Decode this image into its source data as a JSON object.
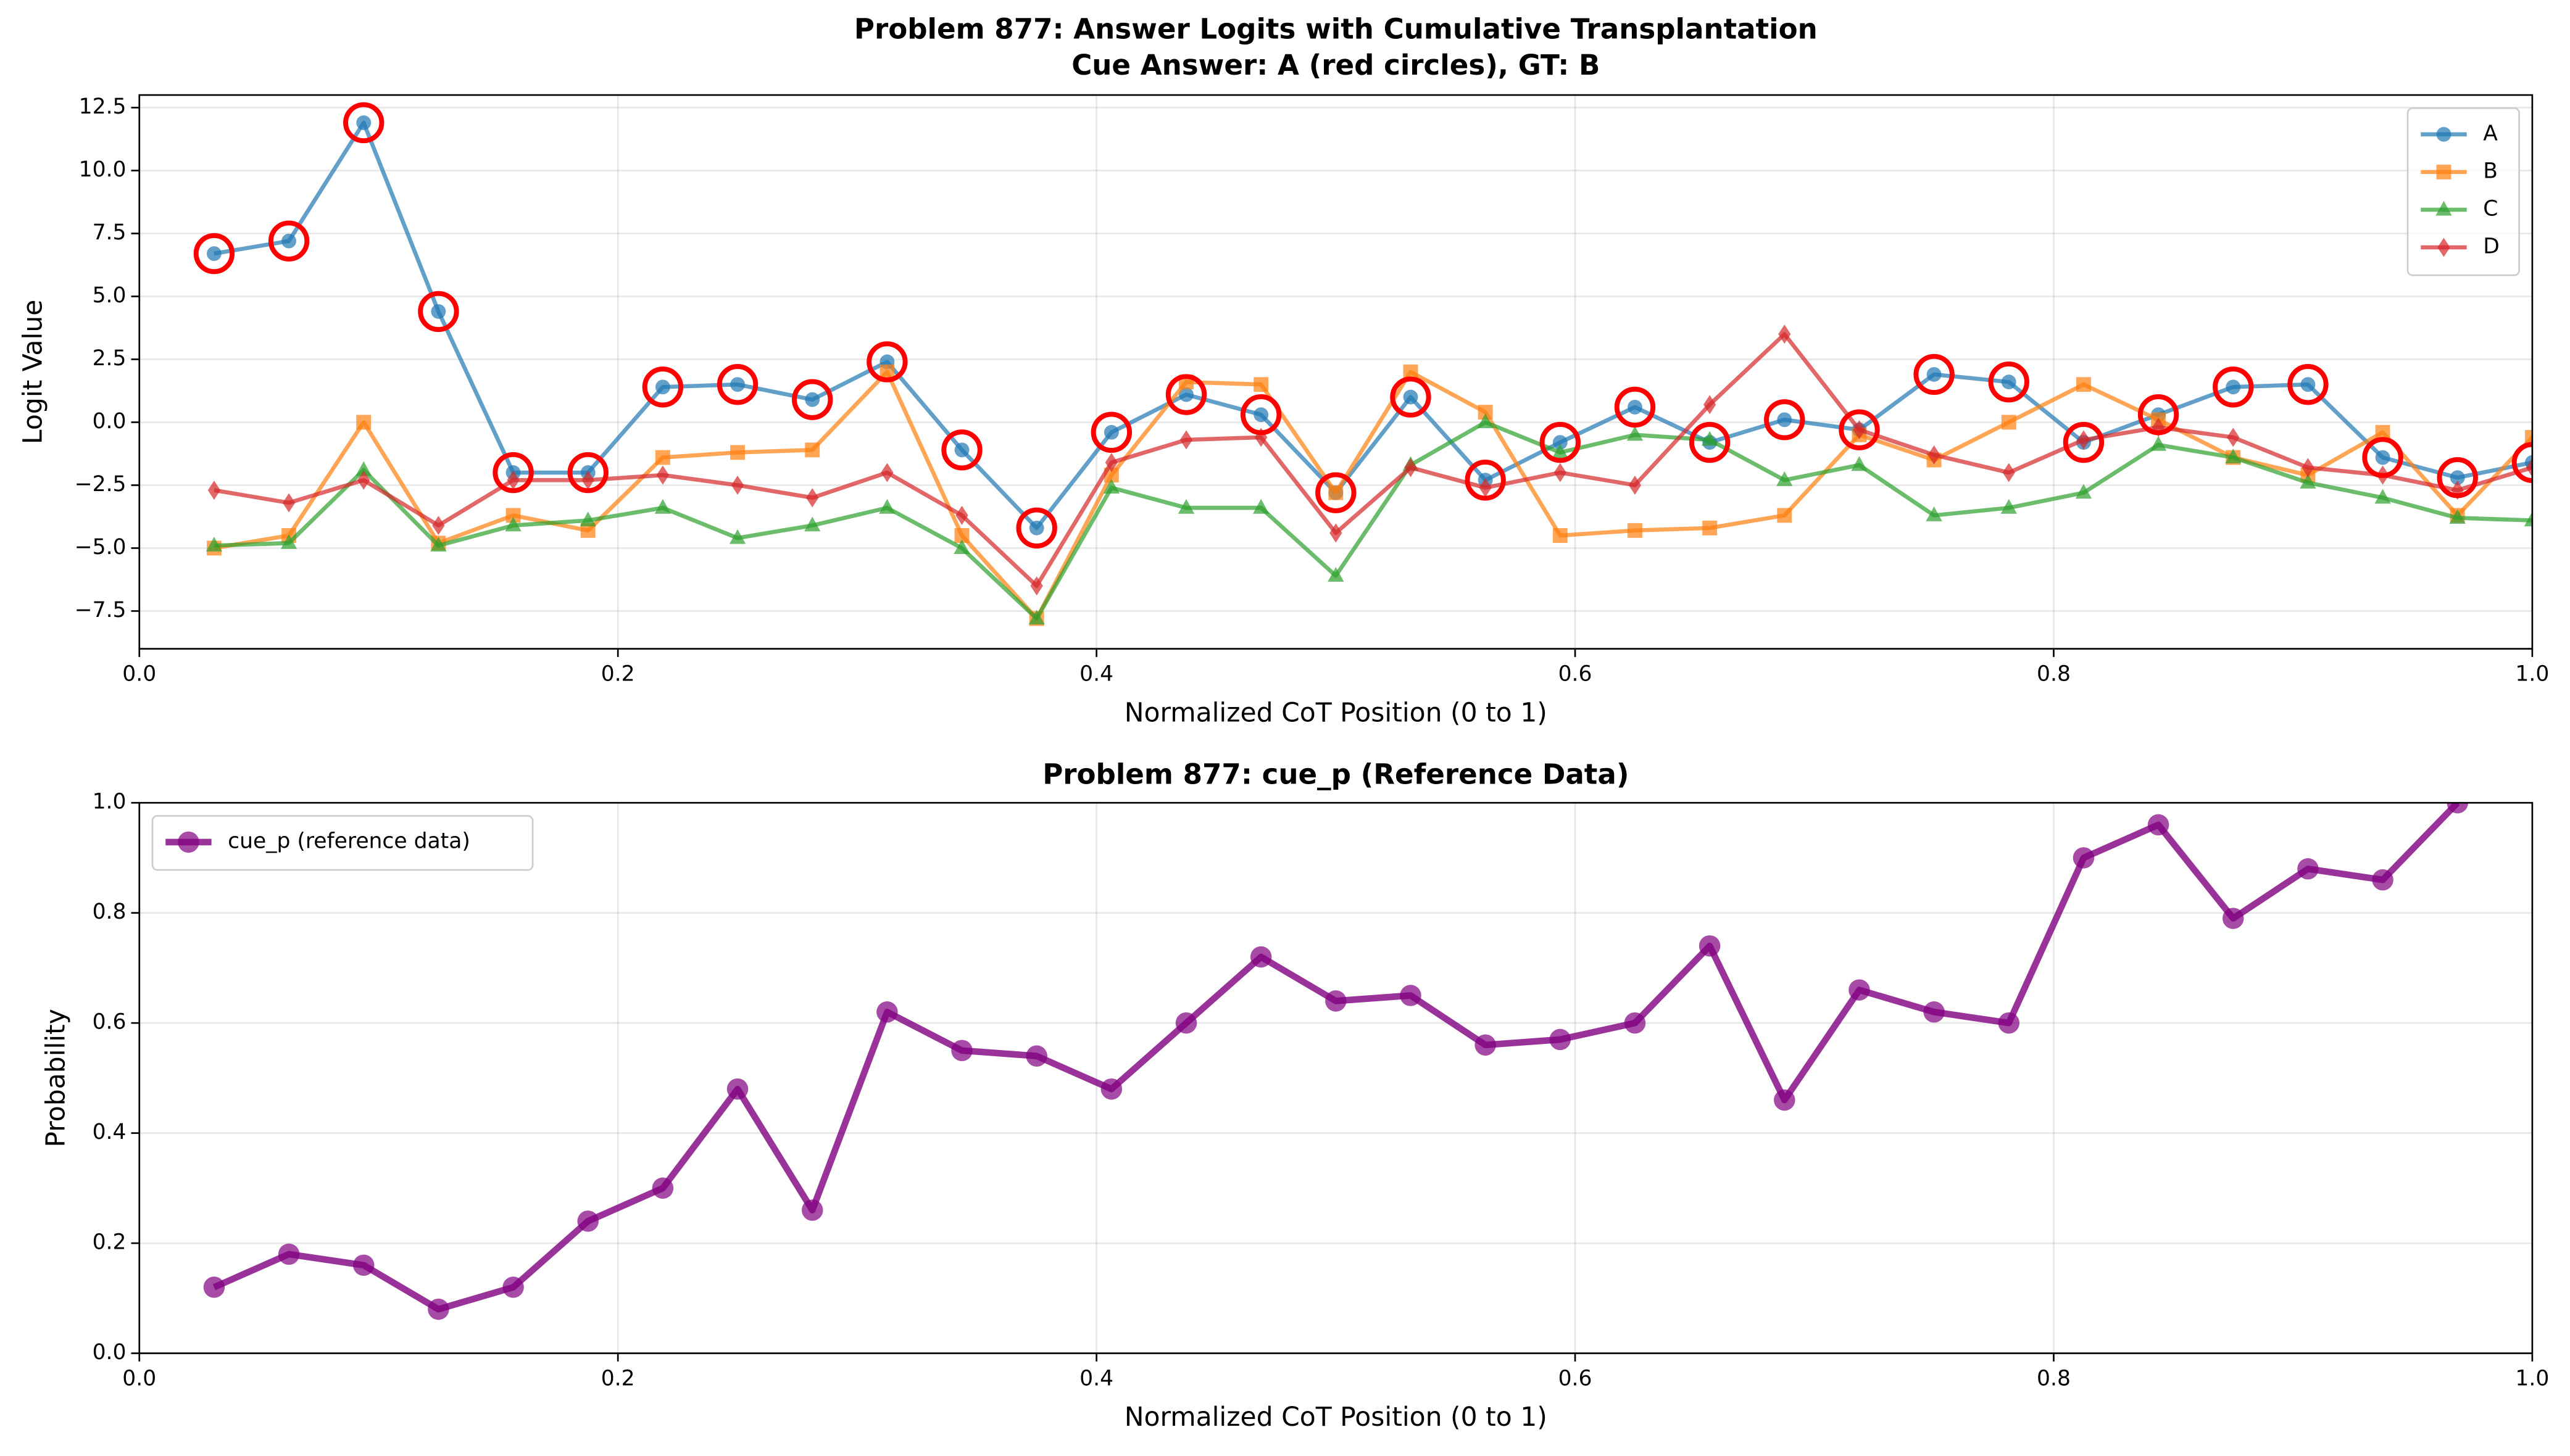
{
  "chart_data": [
    {
      "type": "line",
      "title": "Problem 877: Answer Logits with Cumulative Transplantation",
      "subtitle": "Cue Answer: A (red circles), GT: B",
      "x_label": "Normalized CoT Position (0 to 1)",
      "y_label": "Logit Value",
      "x": [
        0.03125,
        0.0625,
        0.09375,
        0.125,
        0.15625,
        0.1875,
        0.21875,
        0.25,
        0.28125,
        0.3125,
        0.34375,
        0.375,
        0.40625,
        0.4375,
        0.46875,
        0.5,
        0.53125,
        0.5625,
        0.59375,
        0.625,
        0.65625,
        0.6875,
        0.71875,
        0.75,
        0.78125,
        0.8125,
        0.84375,
        0.875,
        0.90625,
        0.9375,
        0.96875,
        1.0
      ],
      "series": [
        {
          "name": "A",
          "color": "#1f77b4",
          "marker": "circle",
          "values": [
            6.7,
            7.2,
            11.9,
            4.4,
            -2.0,
            -2.0,
            1.4,
            1.5,
            0.9,
            2.4,
            -1.1,
            -4.2,
            -0.4,
            1.1,
            0.3,
            -2.8,
            1.0,
            -2.3,
            -0.8,
            0.6,
            -0.8,
            0.1,
            -0.3,
            1.9,
            1.6,
            -0.8,
            0.3,
            1.4,
            1.5,
            -1.4,
            -2.2,
            -1.6
          ]
        },
        {
          "name": "B",
          "color": "#ff7f0e",
          "marker": "square",
          "values": [
            -5.0,
            -4.5,
            0.0,
            -4.8,
            -3.7,
            -4.3,
            -1.4,
            -1.2,
            -1.1,
            2.0,
            -4.5,
            -7.8,
            -2.1,
            1.6,
            1.5,
            -2.8,
            2.0,
            0.4,
            -4.5,
            -4.3,
            -4.2,
            -3.7,
            -0.5,
            -1.5,
            0.0,
            1.5,
            0.1,
            -1.4,
            -2.1,
            -0.4,
            -3.7,
            -0.6
          ]
        },
        {
          "name": "C",
          "color": "#2ca02c",
          "marker": "triangle",
          "values": [
            -4.9,
            -4.8,
            -1.9,
            -4.9,
            -4.1,
            -3.9,
            -3.4,
            -4.6,
            -4.1,
            -3.4,
            -5.0,
            -7.8,
            -2.6,
            -3.4,
            -3.4,
            -6.1,
            -1.7,
            0.0,
            -1.2,
            -0.5,
            -0.7,
            -2.3,
            -1.7,
            -3.7,
            -3.4,
            -2.8,
            -0.9,
            -1.4,
            -2.4,
            -3.0,
            -3.8,
            -3.9
          ]
        },
        {
          "name": "D",
          "color": "#d62728",
          "marker": "diamond",
          "values": [
            -2.7,
            -3.2,
            -2.3,
            -4.1,
            -2.3,
            -2.3,
            -2.1,
            -2.5,
            -3.0,
            -2.0,
            -3.7,
            -6.5,
            -1.6,
            -0.7,
            -0.6,
            -4.4,
            -1.8,
            -2.6,
            -2.0,
            -2.5,
            0.7,
            3.5,
            -0.3,
            -1.3,
            -2.0,
            -0.7,
            -0.2,
            -0.6,
            -1.8,
            -2.1,
            -2.7,
            -1.8
          ]
        }
      ],
      "highlight": {
        "series": 0,
        "color": "#ff0000"
      },
      "xlim": [
        0,
        1
      ],
      "ylim": [
        -9.0,
        13.0
      ],
      "xticks": [
        {
          "value": 0,
          "label": "0.0"
        },
        {
          "value": 0.2,
          "label": "0.2"
        },
        {
          "value": 0.4,
          "label": "0.4"
        },
        {
          "value": 0.6,
          "label": "0.6"
        },
        {
          "value": 0.8,
          "label": "0.8"
        },
        {
          "value": 1,
          "label": "1.0"
        }
      ],
      "yticks": [
        {
          "value": -7.5,
          "label": "−7.5"
        },
        {
          "value": -5,
          "label": "−5.0"
        },
        {
          "value": -2.5,
          "label": "−2.5"
        },
        {
          "value": 0,
          "label": "0.0"
        },
        {
          "value": 2.5,
          "label": "2.5"
        },
        {
          "value": 5,
          "label": "5.0"
        },
        {
          "value": 7.5,
          "label": "7.5"
        },
        {
          "value": 10,
          "label": "10.0"
        },
        {
          "value": 12.5,
          "label": "12.5"
        }
      ],
      "grid": true,
      "legend": "upper right"
    },
    {
      "type": "line",
      "title": "Problem 877: cue_p (Reference Data)",
      "x_label": "Normalized CoT Position (0 to 1)",
      "y_label": "Probability",
      "x": [
        0.03125,
        0.0625,
        0.09375,
        0.125,
        0.15625,
        0.1875,
        0.21875,
        0.25,
        0.28125,
        0.3125,
        0.34375,
        0.375,
        0.40625,
        0.4375,
        0.46875,
        0.5,
        0.53125,
        0.5625,
        0.59375,
        0.625,
        0.65625,
        0.6875,
        0.71875,
        0.75,
        0.78125,
        0.8125,
        0.84375,
        0.875,
        0.90625,
        0.9375,
        0.96875
      ],
      "series": [
        {
          "name": "cue_p (reference data)",
          "color": "#800080",
          "marker": "circle",
          "values": [
            0.12,
            0.18,
            0.16,
            0.08,
            0.12,
            0.24,
            0.3,
            0.48,
            0.26,
            0.62,
            0.55,
            0.54,
            0.48,
            0.6,
            0.72,
            0.64,
            0.65,
            0.56,
            0.57,
            0.6,
            0.74,
            0.46,
            0.66,
            0.62,
            0.6,
            0.9,
            0.96,
            0.79,
            0.88,
            0.86,
            1.0
          ]
        }
      ],
      "xlim": [
        0,
        1
      ],
      "ylim": [
        0,
        1
      ],
      "xticks": [
        {
          "value": 0,
          "label": "0.0"
        },
        {
          "value": 0.2,
          "label": "0.2"
        },
        {
          "value": 0.4,
          "label": "0.4"
        },
        {
          "value": 0.6,
          "label": "0.6"
        },
        {
          "value": 0.8,
          "label": "0.8"
        },
        {
          "value": 1,
          "label": "1.0"
        }
      ],
      "yticks": [
        {
          "value": 0,
          "label": "0.0"
        },
        {
          "value": 0.2,
          "label": "0.2"
        },
        {
          "value": 0.4,
          "label": "0.4"
        },
        {
          "value": 0.6,
          "label": "0.6"
        },
        {
          "value": 0.8,
          "label": "0.8"
        },
        {
          "value": 1,
          "label": "1.0"
        }
      ],
      "grid": true,
      "legend": "upper left"
    }
  ]
}
